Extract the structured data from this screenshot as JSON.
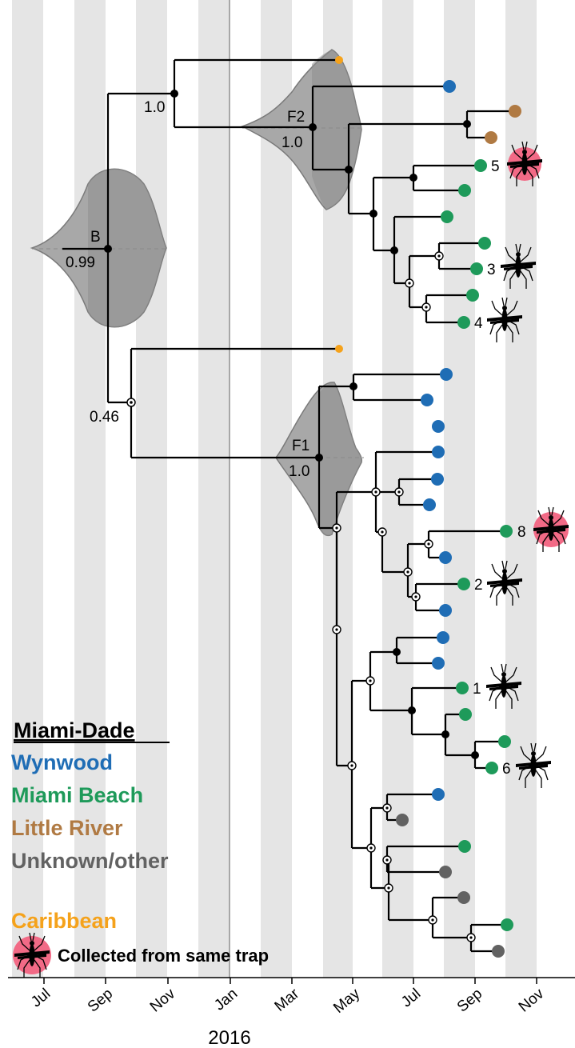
{
  "colors": {
    "wynwood": "#1f6db5",
    "miami_beach": "#1e9a5a",
    "little_river": "#b07a43",
    "unknown": "#626262",
    "caribbean": "#f5a21b",
    "trap": "#f26a86"
  },
  "axis": {
    "ticks": [
      "Jul",
      "Sep",
      "Nov",
      "Jan",
      "Mar",
      "May",
      "Jul",
      "Sep",
      "Nov"
    ],
    "year": "2016"
  },
  "nodes": {
    "B": {
      "name": "B",
      "support": "0.99"
    },
    "F1": {
      "name": "F1",
      "support": "1.0"
    },
    "F2": {
      "name": "F2",
      "support": "1.0"
    },
    "top": {
      "support": "1.0"
    },
    "lower": {
      "support": "0.46"
    }
  },
  "tip_numbers": [
    "5",
    "3",
    "4",
    "8",
    "2",
    "1",
    "6"
  ],
  "legend": {
    "title": "Miami-Dade",
    "items": [
      "Wynwood",
      "Miami Beach",
      "Little River",
      "Unknown/other"
    ],
    "caribbean": "Caribbean",
    "trap": "Collected from same trap"
  },
  "icons": [
    "mosquito-icon"
  ]
}
